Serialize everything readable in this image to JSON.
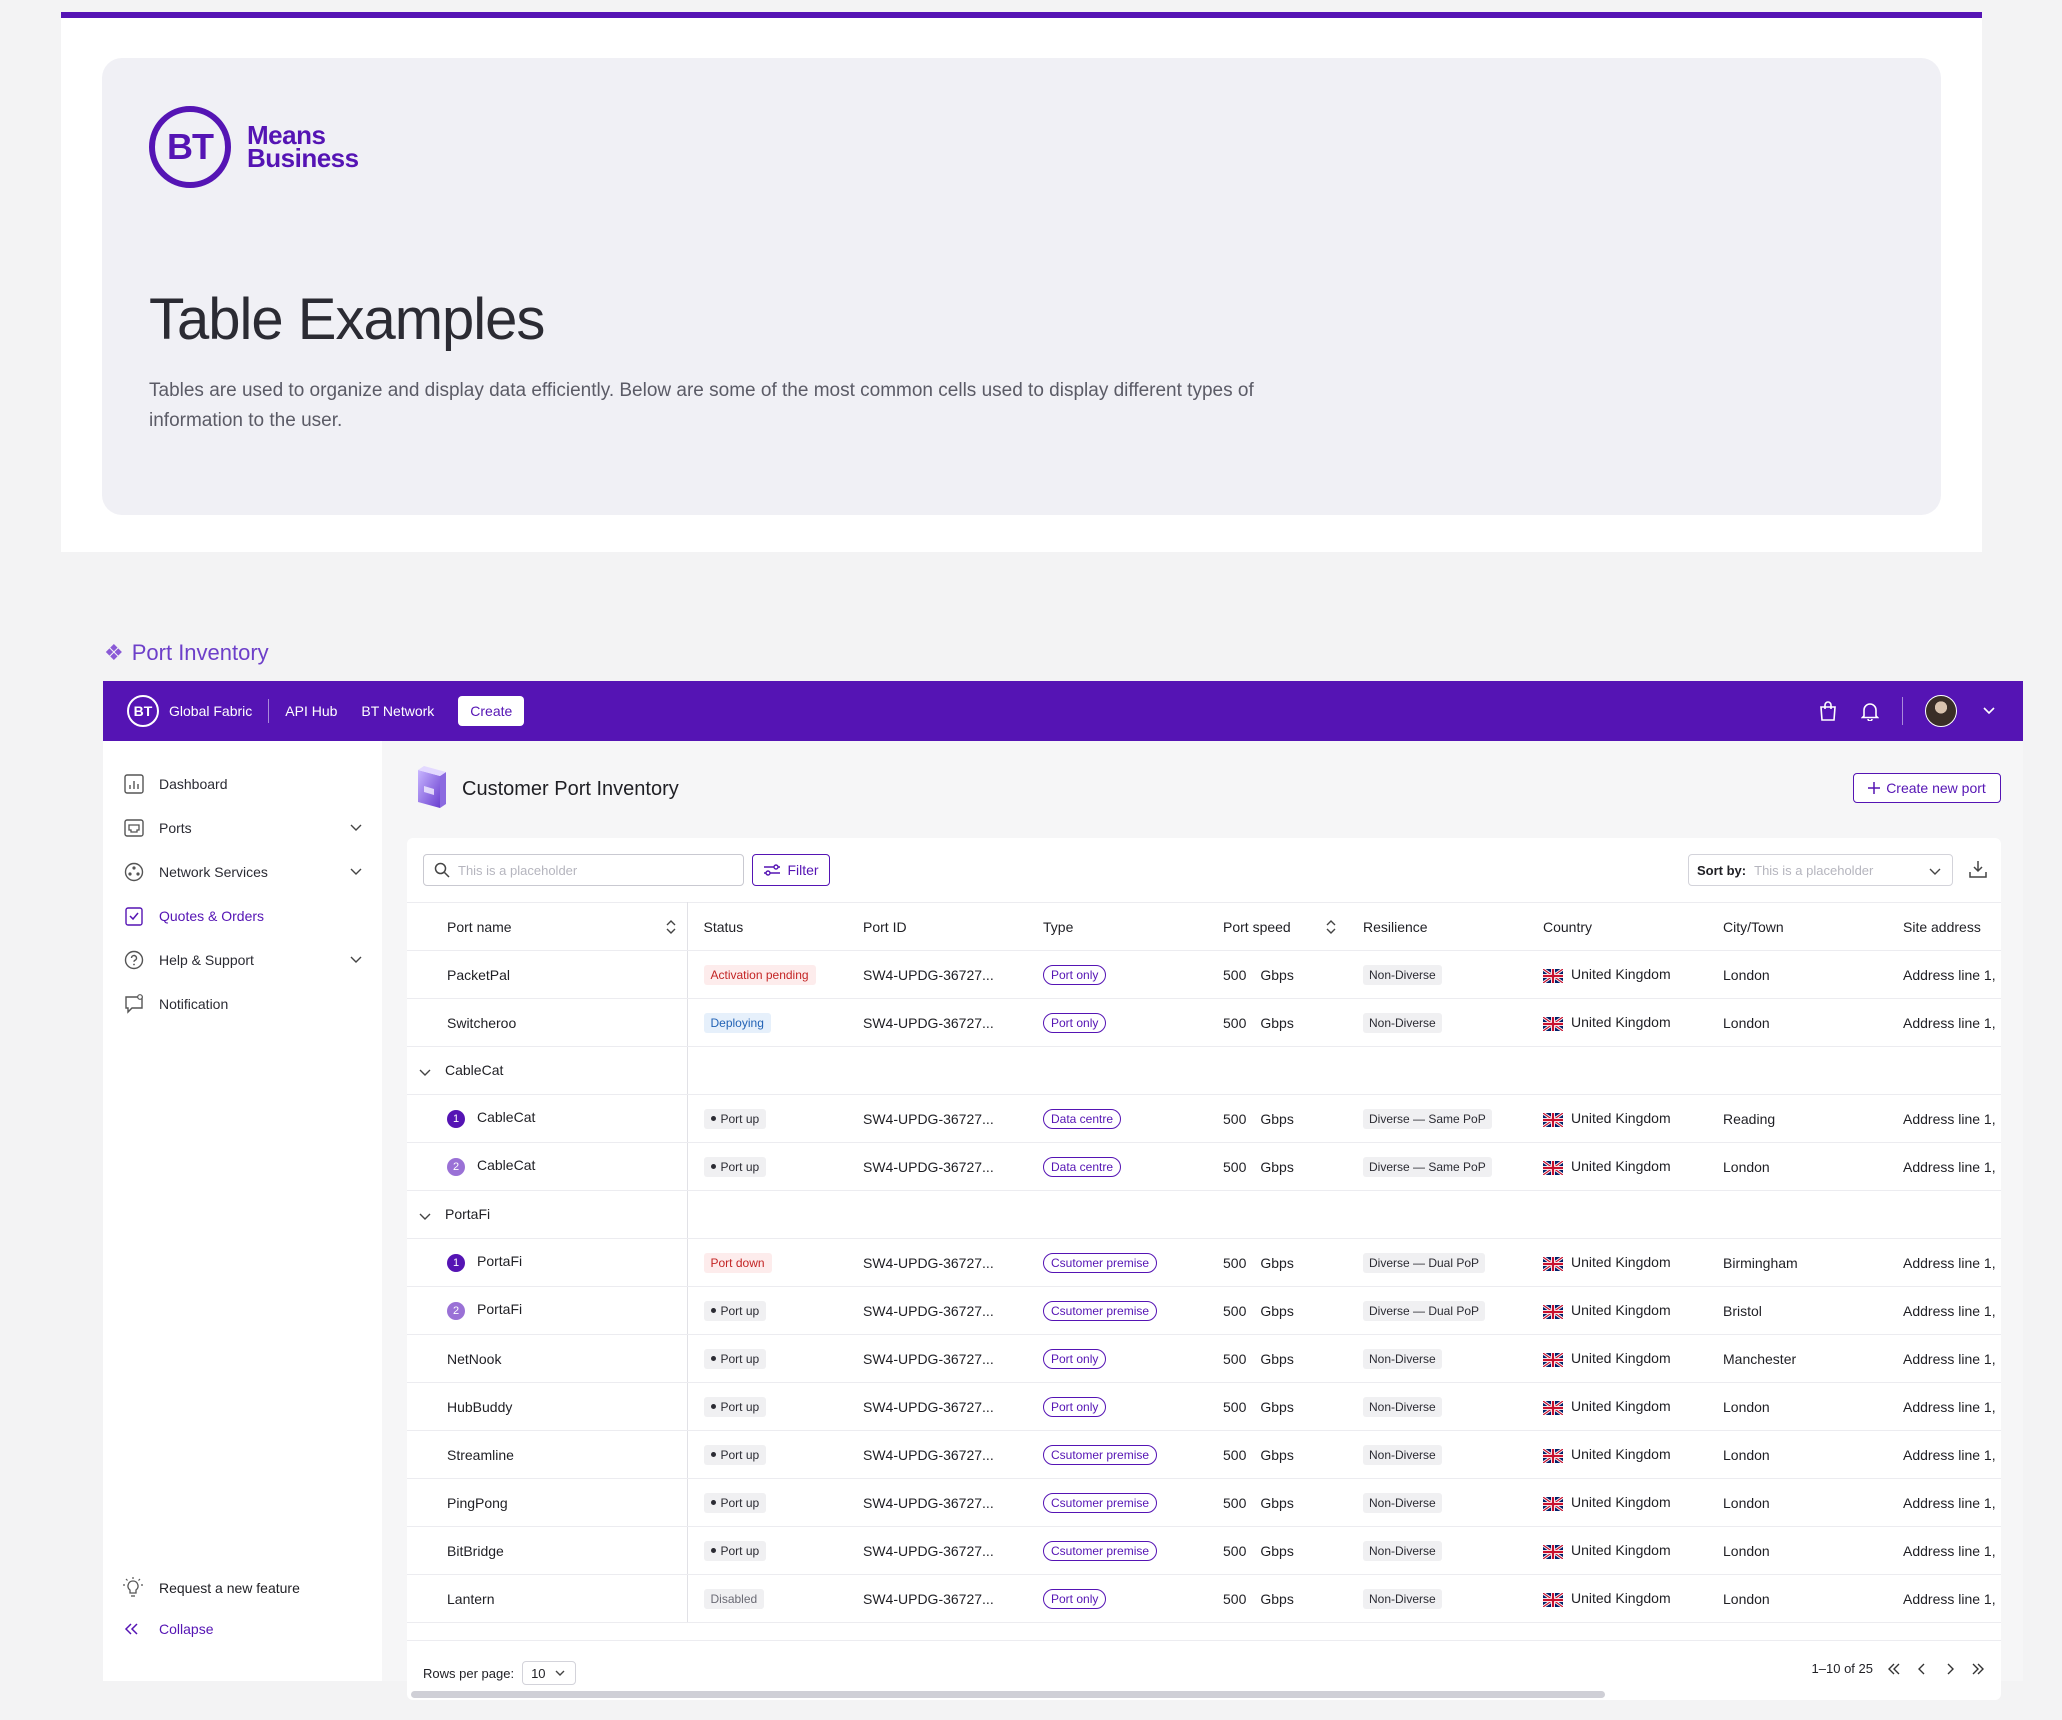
{
  "hero": {
    "logo_bt": "BT",
    "logo_line1": "Means",
    "logo_line2": "Business",
    "title": "Table Examples",
    "description": "Tables are used to organize and display data efficiently. Below are some of the most common cells used to display different types of information to the user."
  },
  "section": {
    "title": "Port Inventory"
  },
  "topnav": {
    "logo": "BT",
    "brand": "Global Fabric",
    "links": [
      "API Hub",
      "BT Network"
    ],
    "create_label": "Create"
  },
  "sidebar": {
    "items": [
      {
        "label": "Dashboard",
        "icon": "chart-icon"
      },
      {
        "label": "Ports",
        "icon": "port-icon"
      },
      {
        "label": "Network Services",
        "icon": "network-icon"
      },
      {
        "label": "Quotes & Orders",
        "icon": "clipboard-check-icon"
      },
      {
        "label": "Help & Support",
        "icon": "help-icon"
      },
      {
        "label": "Notification",
        "icon": "chat-icon"
      }
    ],
    "request_feature": "Request a new feature",
    "collapse": "Collapse"
  },
  "page": {
    "title": "Customer Port Inventory",
    "create_button": "Create new port"
  },
  "toolbar": {
    "search_placeholder": "This is a placeholder",
    "filter_label": "Filter",
    "sort_label": "Sort by:",
    "sort_placeholder": "This is a placeholder"
  },
  "table": {
    "columns": [
      "Port name",
      "Status",
      "Port ID",
      "Type",
      "Port speed",
      "Resilience",
      "Country",
      "City/Town",
      "Site address"
    ],
    "speed_unit": "Gbps",
    "rows": [
      {
        "kind": "row",
        "name": "PacketPal",
        "status": "Activation pending",
        "status_kind": "pending",
        "port_id": "SW4-UPDG-36727...",
        "type": "Port only",
        "speed": "500",
        "resilience": "Non-Diverse",
        "country": "United Kingdom",
        "city": "London",
        "address": "Address line 1,"
      },
      {
        "kind": "row",
        "name": "Switcheroo",
        "status": "Deploying",
        "status_kind": "deploy",
        "port_id": "SW4-UPDG-36727...",
        "type": "Port only",
        "speed": "500",
        "resilience": "Non-Diverse",
        "country": "United Kingdom",
        "city": "London",
        "address": "Address line 1,"
      },
      {
        "kind": "group",
        "name": "CableCat"
      },
      {
        "kind": "sub",
        "num": "1",
        "name": "CableCat",
        "status": "Port up",
        "status_kind": "up",
        "port_id": "SW4-UPDG-36727...",
        "type": "Data centre",
        "speed": "500",
        "resilience": "Diverse — Same PoP",
        "country": "United Kingdom",
        "city": "Reading",
        "address": "Address line 1,"
      },
      {
        "kind": "sub",
        "num": "2",
        "name": "CableCat",
        "status": "Port up",
        "status_kind": "up",
        "port_id": "SW4-UPDG-36727...",
        "type": "Data centre",
        "speed": "500",
        "resilience": "Diverse — Same PoP",
        "country": "United Kingdom",
        "city": "London",
        "address": "Address line 1,"
      },
      {
        "kind": "group",
        "name": "PortaFi"
      },
      {
        "kind": "sub",
        "num": "1",
        "name": "PortaFi",
        "status": "Port down",
        "status_kind": "down",
        "port_id": "SW4-UPDG-36727...",
        "type": "Csutomer premise",
        "speed": "500",
        "resilience": "Diverse — Dual PoP",
        "country": "United Kingdom",
        "city": "Birmingham",
        "address": "Address line 1,"
      },
      {
        "kind": "sub",
        "num": "2",
        "name": "PortaFi",
        "status": "Port up",
        "status_kind": "up",
        "port_id": "SW4-UPDG-36727...",
        "type": "Csutomer premise",
        "speed": "500",
        "resilience": "Diverse — Dual PoP",
        "country": "United Kingdom",
        "city": "Bristol",
        "address": "Address line 1,"
      },
      {
        "kind": "row",
        "name": "NetNook",
        "status": "Port up",
        "status_kind": "up",
        "port_id": "SW4-UPDG-36727...",
        "type": "Port only",
        "speed": "500",
        "resilience": "Non-Diverse",
        "country": "United Kingdom",
        "city": "Manchester",
        "address": "Address line 1,"
      },
      {
        "kind": "row",
        "name": "HubBuddy",
        "status": "Port up",
        "status_kind": "up",
        "port_id": "SW4-UPDG-36727...",
        "type": "Port only",
        "speed": "500",
        "resilience": "Non-Diverse",
        "country": "United Kingdom",
        "city": "London",
        "address": "Address line 1,"
      },
      {
        "kind": "row",
        "name": "Streamline",
        "status": "Port up",
        "status_kind": "up",
        "port_id": "SW4-UPDG-36727...",
        "type": "Csutomer premise",
        "speed": "500",
        "resilience": "Non-Diverse",
        "country": "United Kingdom",
        "city": "London",
        "address": "Address line 1,"
      },
      {
        "kind": "row",
        "name": "PingPong",
        "status": "Port up",
        "status_kind": "up",
        "port_id": "SW4-UPDG-36727...",
        "type": "Csutomer premise",
        "speed": "500",
        "resilience": "Non-Diverse",
        "country": "United Kingdom",
        "city": "London",
        "address": "Address line 1,"
      },
      {
        "kind": "row",
        "name": "BitBridge",
        "status": "Port up",
        "status_kind": "up",
        "port_id": "SW4-UPDG-36727...",
        "type": "Csutomer premise",
        "speed": "500",
        "resilience": "Non-Diverse",
        "country": "United Kingdom",
        "city": "London",
        "address": "Address line 1,"
      },
      {
        "kind": "row",
        "name": "Lantern",
        "status": "Disabled",
        "status_kind": "disabled",
        "port_id": "SW4-UPDG-36727...",
        "type": "Port only",
        "speed": "500",
        "resilience": "Non-Diverse",
        "country": "United Kingdom",
        "city": "London",
        "address": "Address line 1,"
      }
    ]
  },
  "footer": {
    "rows_per_page_label": "Rows per page:",
    "rows_per_page_value": "10",
    "range": "1–10 of 25"
  },
  "colors": {
    "brand": "#5514b4",
    "brand_light": "#9a71d6",
    "danger": "#c32424",
    "info": "#2363b5"
  }
}
